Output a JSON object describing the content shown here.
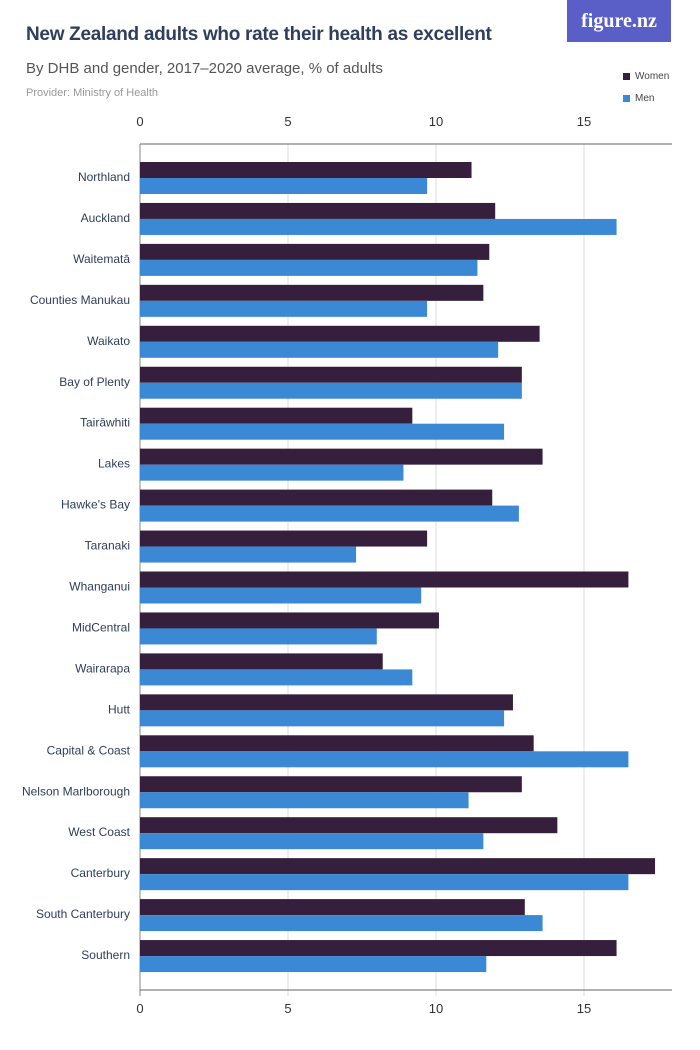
{
  "header": {
    "title": "New Zealand adults who rate their health as excellent",
    "subtitle": "By DHB and gender, 2017–2020 average, % of adults",
    "provider": "Provider: Ministry of Health",
    "logo": "figure.nz"
  },
  "chart_data": {
    "type": "bar",
    "orientation": "horizontal",
    "title": "New Zealand adults who rate their health as excellent",
    "subtitle": "By DHB and gender, 2017–2020 average, % of adults",
    "xlim": [
      0,
      18
    ],
    "ticks": [
      0,
      5,
      10,
      15
    ],
    "grid": true,
    "legend": "top-right",
    "categories": [
      "Northland",
      "Auckland",
      "Waitematā",
      "Counties Manukau",
      "Waikato",
      "Bay of Plenty",
      "Tairāwhiti",
      "Lakes",
      "Hawke's Bay",
      "Taranaki",
      "Whanganui",
      "MidCentral",
      "Wairarapa",
      "Hutt",
      "Capital & Coast",
      "Nelson Marlborough",
      "West Coast",
      "Canterbury",
      "South Canterbury",
      "Southern"
    ],
    "series": [
      {
        "name": "Women",
        "color": "#351f3d",
        "values": [
          11.2,
          12.0,
          11.8,
          11.6,
          13.5,
          12.9,
          9.2,
          13.6,
          11.9,
          9.7,
          16.5,
          10.1,
          8.2,
          12.6,
          13.3,
          12.9,
          14.1,
          17.4,
          13.0,
          16.1
        ]
      },
      {
        "name": "Men",
        "color": "#3b88d4",
        "values": [
          9.7,
          16.1,
          11.4,
          9.7,
          12.1,
          12.9,
          12.3,
          8.9,
          12.8,
          7.3,
          9.5,
          8.0,
          9.2,
          12.3,
          16.5,
          11.1,
          11.6,
          16.5,
          13.6,
          11.7
        ]
      }
    ]
  }
}
